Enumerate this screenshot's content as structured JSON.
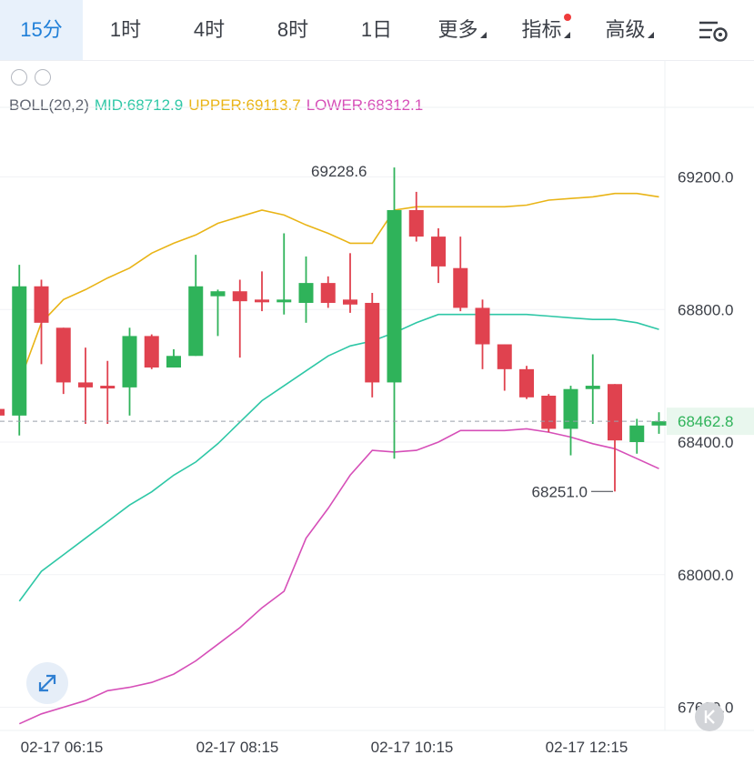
{
  "toolbar": {
    "tabs": [
      {
        "label": "15分",
        "active": true
      },
      {
        "label": "1时"
      },
      {
        "label": "4时"
      },
      {
        "label": "8时"
      },
      {
        "label": "1日"
      },
      {
        "label": "更多",
        "dropdown": true
      },
      {
        "label": "指标",
        "dropdown": true,
        "badge": true
      },
      {
        "label": "高级",
        "dropdown": true
      }
    ],
    "settings_icon": "chart-settings-icon"
  },
  "indicator": {
    "name": "BOLL(20,2)",
    "mid": "MID:68712.9",
    "upper": "UPPER:69113.7",
    "lower": "LOWER:68312.1"
  },
  "colors": {
    "up": "#2fb35a",
    "down": "#e0424f",
    "mid": "#2ec7a6",
    "upper": "#e9b416",
    "lower": "#d64fb8",
    "price_tag_bg": "#e9f7ee",
    "price_tag_text": "#2fb35a",
    "accent": "#1f7fd8"
  },
  "chart_data": {
    "type": "candlestick",
    "y_ticks": [
      "69200.0",
      "68800.0",
      "68400.0",
      "68000.0",
      "67600.0"
    ],
    "x_ticks": [
      "02-17 06:15",
      "02-17 08:15",
      "02-17 10:15",
      "02-17 12:15"
    ],
    "ylim": [
      67530,
      69410
    ],
    "last_price": "68462.8",
    "high_label": "69228.6",
    "low_label": "68251.0",
    "candles": [
      {
        "o": 68500,
        "c": 68480,
        "h": 68520,
        "l": 68460
      },
      {
        "o": 68480,
        "c": 68870,
        "h": 68935,
        "l": 68420
      },
      {
        "o": 68870,
        "c": 68760,
        "h": 68890,
        "l": 68635
      },
      {
        "o": 68745,
        "c": 68580,
        "h": 68745,
        "l": 68545
      },
      {
        "o": 68580,
        "c": 68565,
        "h": 68685,
        "l": 68455
      },
      {
        "o": 68570,
        "c": 68565,
        "h": 68645,
        "l": 68455
      },
      {
        "o": 68565,
        "c": 68720,
        "h": 68745,
        "l": 68480
      },
      {
        "o": 68720,
        "c": 68625,
        "h": 68725,
        "l": 68620
      },
      {
        "o": 68625,
        "c": 68660,
        "h": 68680,
        "l": 68625
      },
      {
        "o": 68660,
        "c": 68870,
        "h": 68965,
        "l": 68660
      },
      {
        "o": 68840,
        "c": 68855,
        "h": 68860,
        "l": 68720
      },
      {
        "o": 68855,
        "c": 68825,
        "h": 68890,
        "l": 68655
      },
      {
        "o": 68830,
        "c": 68825,
        "h": 68915,
        "l": 68795
      },
      {
        "o": 68830,
        "c": 68830,
        "h": 69030,
        "l": 68785
      },
      {
        "o": 68820,
        "c": 68880,
        "h": 68960,
        "l": 68760
      },
      {
        "o": 68880,
        "c": 68820,
        "h": 68900,
        "l": 68805
      },
      {
        "o": 68830,
        "c": 68815,
        "h": 68970,
        "l": 68790
      },
      {
        "o": 68820,
        "c": 68580,
        "h": 68850,
        "l": 68535
      },
      {
        "o": 68580,
        "c": 69100,
        "h": 69228.6,
        "l": 68350
      },
      {
        "o": 69100,
        "c": 69020,
        "h": 69155,
        "l": 69005
      },
      {
        "o": 69020,
        "c": 68930,
        "h": 69045,
        "l": 68880
      },
      {
        "o": 68925,
        "c": 68805,
        "h": 69020,
        "l": 68795
      },
      {
        "o": 68805,
        "c": 68695,
        "h": 68830,
        "l": 68620
      },
      {
        "o": 68695,
        "c": 68620,
        "h": 68695,
        "l": 68555
      },
      {
        "o": 68620,
        "c": 68535,
        "h": 68630,
        "l": 68530
      },
      {
        "o": 68540,
        "c": 68440,
        "h": 68545,
        "l": 68430
      },
      {
        "o": 68440,
        "c": 68560,
        "h": 68570,
        "l": 68360
      },
      {
        "o": 68560,
        "c": 68570,
        "h": 68665,
        "l": 68455
      },
      {
        "o": 68575,
        "c": 68405,
        "h": 68575,
        "l": 68251.0
      },
      {
        "o": 68400,
        "c": 68450,
        "h": 68470,
        "l": 68365
      },
      {
        "o": 68450,
        "c": 68462.8,
        "h": 68490,
        "l": 68425
      }
    ],
    "upper": [
      68580,
      68760,
      68830,
      68860,
      68895,
      68925,
      68970,
      69000,
      69025,
      69060,
      69080,
      69100,
      69085,
      69055,
      69030,
      69000,
      69000,
      69100,
      69110,
      69110,
      69110,
      69110,
      69110,
      69115,
      69130,
      69135,
      69140,
      69150,
      69150,
      69140
    ],
    "mid": [
      67920,
      68010,
      68060,
      68110,
      68160,
      68210,
      68250,
      68300,
      68340,
      68395,
      68460,
      68525,
      68570,
      68615,
      68660,
      68690,
      68705,
      68730,
      68760,
      68785,
      68785,
      68785,
      68785,
      68785,
      68780,
      68775,
      68770,
      68770,
      68760,
      68740
    ],
    "lower": [
      67550,
      67580,
      67600,
      67620,
      67650,
      67660,
      67675,
      67700,
      67740,
      67790,
      67840,
      67900,
      67950,
      68110,
      68200,
      68300,
      68375,
      68370,
      68375,
      68400,
      68435,
      68435,
      68435,
      68440,
      68430,
      68415,
      68395,
      68380,
      68350,
      68320
    ]
  }
}
